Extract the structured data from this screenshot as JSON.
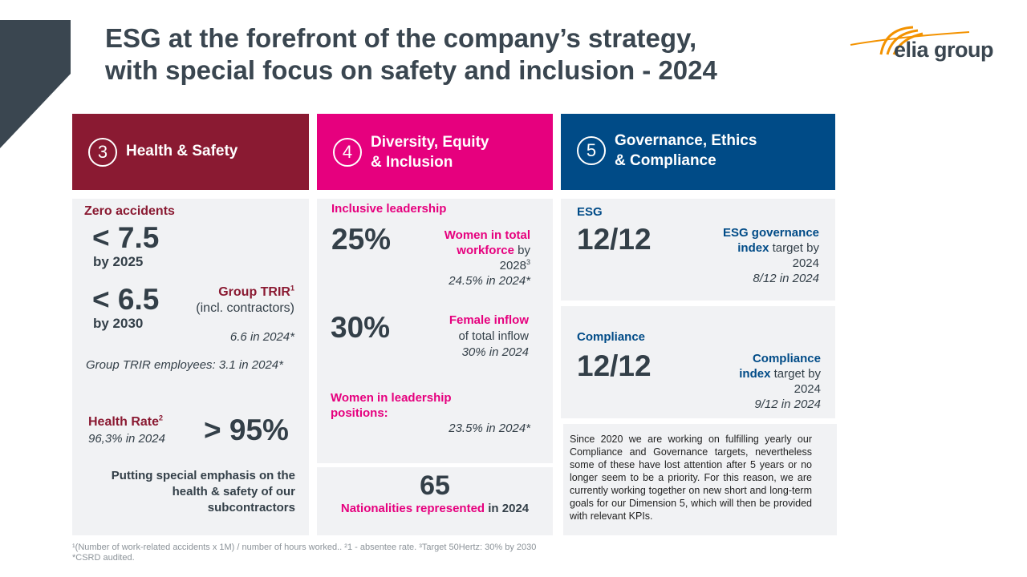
{
  "title_line1": "ESG at the forefront of the company’s strategy,",
  "title_line2": "with special focus on safety and inclusion - 2024",
  "logo": {
    "text": "elia group"
  },
  "colors": {
    "health": "#8a1a32",
    "diversity": "#e6007e",
    "governance": "#004b87",
    "corner": "#3a4650"
  },
  "headers": [
    {
      "num": "3",
      "line1": "Health & Safety",
      "line2": ""
    },
    {
      "num": "4",
      "line1": "Diversity, Equity",
      "line2": "& Inclusion"
    },
    {
      "num": "5",
      "line1": "Governance, Ethics",
      "line2": "& Compliance"
    }
  ],
  "health": {
    "zero_accidents": "Zero accidents",
    "target1_value": "< 7.5",
    "target1_year": "by 2025",
    "target2_value": "< 6.5",
    "target2_year": "by 2030",
    "trir_label": "Group TRIR",
    "trir_sup": "1",
    "trir_incl": "(incl. contractors)",
    "trir_actual": "6.6 in 2024*",
    "trir_employees": "Group TRIR employees: 3.1 in 2024*",
    "health_rate_label": "Health Rate",
    "health_rate_sup": "2",
    "health_rate_actual": "96,3% in 2024",
    "health_rate_value": "> 95%",
    "emphasis_line1": "Putting special emphasis on the",
    "emphasis_line2": "health & safety of our",
    "emphasis_line3": "subcontractors"
  },
  "diversity": {
    "inclusive_leadership": "Inclusive leadership",
    "women_total_value": "25%",
    "women_total_l1": "Women in total",
    "women_total_l2a": "workforce",
    "women_total_l2b": " by",
    "women_total_year": "2028",
    "women_total_sup": "3",
    "women_total_actual": "24.5% in 2024*",
    "female_inflow_value": "30%",
    "female_inflow_label": "Female inflow",
    "female_inflow_of": "of total inflow",
    "female_inflow_actual": "30% in 2024",
    "women_leadership_l1": "Women in leadership",
    "women_leadership_l2": "positions:",
    "women_leadership_actual": "23.5% in 2024*",
    "nationalities_value": "65",
    "nationalities_label": "Nationalities represented",
    "nationalities_year": " in 2024"
  },
  "governance": {
    "esg_label": "ESG",
    "esg_value": "12/12",
    "esg_index_l1": "ESG governance",
    "esg_index_l2a": "index",
    "esg_index_l2b": " target by",
    "esg_index_year": "2024",
    "esg_actual": "8/12 in 2024",
    "compliance_label": "Compliance",
    "compliance_value": "12/12",
    "compliance_index_l1": "Compliance",
    "compliance_index_l2a": "index",
    "compliance_index_l2b": " target by",
    "compliance_index_year": "2024",
    "compliance_actual": "9/12 in 2024",
    "paragraph": "Since 2020 we are working on fulfilling yearly our Compliance and Governance targets, nevertheless some of these have lost attention after 5 years or no longer seem to be a priority. For this reason, we are currently working together on new short and long-term goals for our Dimension 5, which will then be provided with relevant KPIs."
  },
  "footnotes": {
    "line1": "¹(Number of work-related accidents x 1M) / number of hours worked.. ²1 - absentee rate. ³Target 50Hertz: 30% by 2030",
    "line2": "*CSRD audited."
  }
}
